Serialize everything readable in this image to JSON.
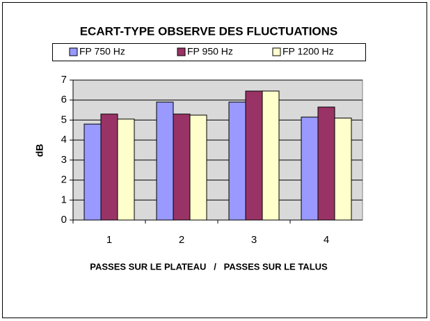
{
  "chart_data": {
    "type": "bar",
    "title": "ECART-TYPE OBSERVE DES FLUCTUATIONS",
    "ylabel": "dB",
    "xlabel": "PASSES SUR LE PLATEAU   /   PASSES SUR LE TALUS",
    "categories": [
      "1",
      "2",
      "3",
      "4"
    ],
    "series": [
      {
        "name": "FP 750 Hz",
        "color": "#9999ff",
        "values": [
          4.8,
          5.9,
          5.9,
          5.15
        ]
      },
      {
        "name": "FP 950 Hz",
        "color": "#993366",
        "values": [
          5.3,
          5.3,
          6.45,
          5.65
        ]
      },
      {
        "name": "FP 1200 Hz",
        "color": "#ffffcc",
        "values": [
          5.05,
          5.25,
          6.45,
          5.1
        ]
      }
    ],
    "ylim": [
      0,
      7
    ],
    "yticks": [
      0,
      1,
      2,
      3,
      4,
      5,
      6,
      7
    ],
    "grid": true
  }
}
